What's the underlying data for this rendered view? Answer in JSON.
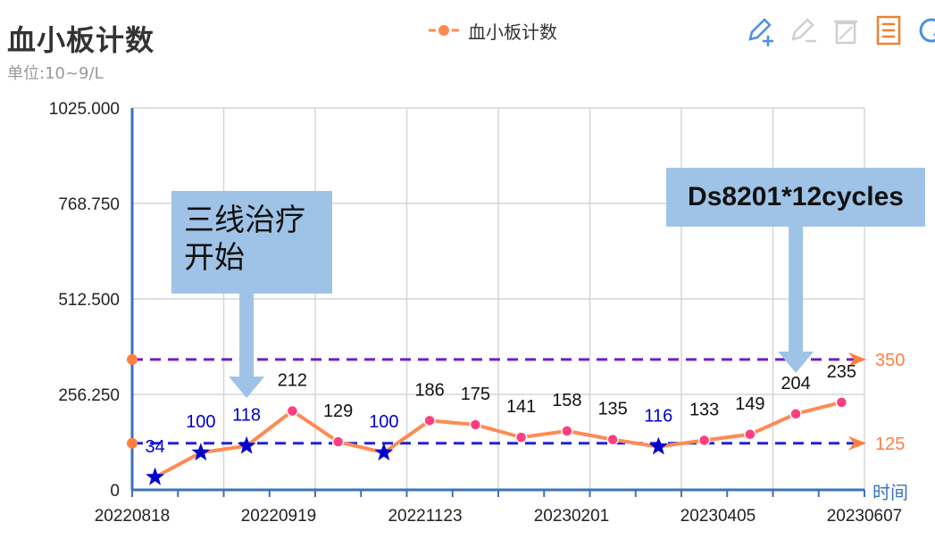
{
  "header": {
    "title": "血小板计数",
    "subtitle": "单位:10~9/L"
  },
  "legend": {
    "label": "血小板计数",
    "color": "#ff8a52"
  },
  "toolbox": {
    "icons": [
      "edit-plus-icon",
      "edit-minus-icon",
      "clear-icon",
      "data-view-icon",
      "refresh-icon"
    ]
  },
  "colors": {
    "line": "#ff8a52",
    "point": "#ff3d7f",
    "star": "#0000cc",
    "upper_ref": "#6f1fc8",
    "lower_ref": "#2020e0",
    "ref_label": "#ff7f3f",
    "axis": "#3b73b8"
  },
  "chart_data": {
    "type": "line",
    "title": "血小板计数",
    "ylabel": "单位:10~9/L",
    "xlabel": "时间",
    "ylim": [
      0,
      1025
    ],
    "y_ticks": [
      "0",
      "256.250",
      "512.500",
      "768.750",
      "1025.000"
    ],
    "x_tick_labels": [
      "20220818",
      "20220919",
      "20221123",
      "20230201",
      "20230405",
      "20230607"
    ],
    "series": [
      {
        "name": "血小板计数",
        "values": [
          34,
          100,
          118,
          212,
          129,
          100,
          186,
          175,
          141,
          158,
          135,
          116,
          133,
          149,
          204,
          235
        ],
        "low_flag": [
          true,
          true,
          true,
          false,
          false,
          true,
          false,
          false,
          false,
          false,
          false,
          true,
          false,
          false,
          false,
          false
        ]
      }
    ],
    "reference_lines": [
      {
        "value": 350,
        "label": "350"
      },
      {
        "value": 125,
        "label": "125"
      }
    ],
    "annotations": [
      {
        "text": "三线治疗\n开始",
        "point_index": 2
      },
      {
        "text": "Ds8201*12cycles",
        "point_index": 14
      }
    ],
    "grid": true
  }
}
